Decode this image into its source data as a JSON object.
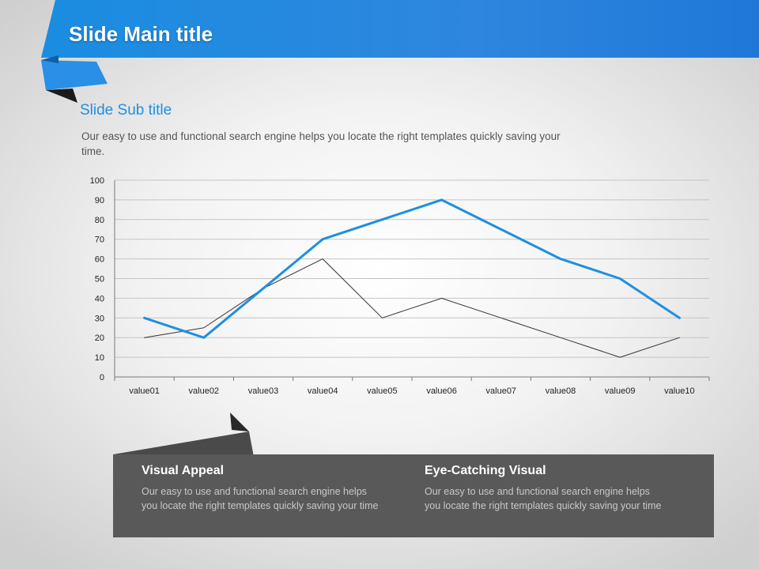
{
  "slide": {
    "title": "Slide Main title",
    "subtitle": "Slide Sub title",
    "body": "Our easy to use and functional search engine helps you locate the right templates quickly saving your time.",
    "accent_color": "#1e8fe0"
  },
  "chart_data": {
    "type": "line",
    "categories": [
      "value01",
      "value02",
      "value03",
      "value04",
      "value05",
      "value06",
      "value07",
      "value08",
      "value09",
      "value10"
    ],
    "series": [
      {
        "values": [
          30,
          20,
          45,
          70,
          80,
          90,
          75,
          60,
          50,
          30
        ],
        "color": "#1e8fe0"
      },
      {
        "values": [
          20,
          25,
          45,
          60,
          30,
          40,
          30,
          20,
          10,
          20
        ],
        "color": "#333333"
      }
    ],
    "yticks": [
      "0",
      "10",
      "20",
      "30",
      "40",
      "50",
      "60",
      "70",
      "80",
      "90",
      "100"
    ],
    "ylim": [
      0,
      100
    ],
    "grid": true,
    "legend": "none"
  },
  "features": [
    {
      "title": "Visual Appeal",
      "body": "Our easy to use and functional search engine helps you locate the right templates quickly saving your time"
    },
    {
      "title": "Eye-Catching Visual",
      "body": "Our easy to use and functional search engine helps you locate the right templates quickly saving your time"
    }
  ]
}
